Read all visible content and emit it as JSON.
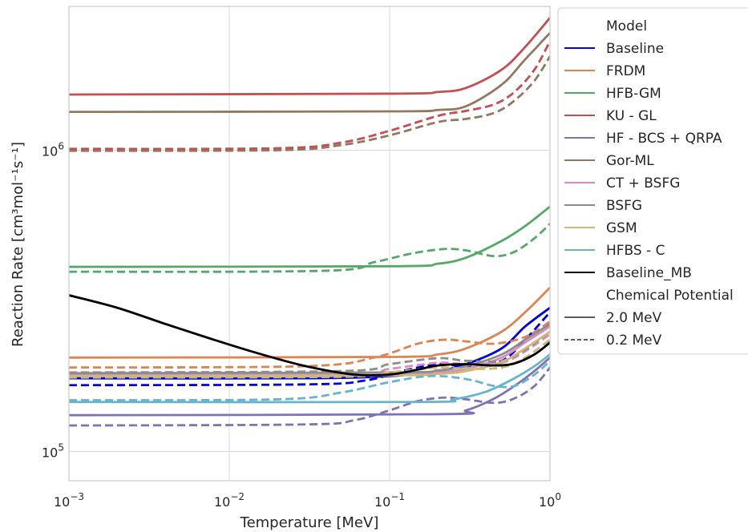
{
  "chart_data": {
    "type": "line",
    "xlabel": "Temperature [MeV]",
    "ylabel": "Reaction Rate [cm³mol⁻¹s⁻¹]",
    "xscale": "log",
    "yscale": "log",
    "xlim": [
      0.001,
      1.0
    ],
    "ylim": [
      80000,
      3000000
    ],
    "grid": true,
    "legend_position": "outside-right",
    "x_ticks": [
      {
        "value": 0.001,
        "mant": "10",
        "exp": "−3"
      },
      {
        "value": 0.01,
        "mant": "10",
        "exp": "−2"
      },
      {
        "value": 0.1,
        "mant": "10",
        "exp": "−1"
      },
      {
        "value": 1.0,
        "mant": "10",
        "exp": "0"
      }
    ],
    "y_ticks": [
      {
        "value": 100000,
        "mant": "10",
        "exp": "5"
      },
      {
        "value": 1000000,
        "mant": "10",
        "exp": "6"
      }
    ],
    "legend": {
      "model_header": "Model",
      "potential_header": "Chemical Potential",
      "potential_items": [
        {
          "label": "2.0 MeV",
          "dash": "solid"
        },
        {
          "label": "0.2 MeV",
          "dash": "dashed"
        }
      ]
    },
    "series": [
      {
        "name": "Baseline",
        "color": "#0000e0",
        "solid": [
          [
            0.001,
            175000
          ],
          [
            0.03,
            175000
          ],
          [
            0.1,
            178000
          ],
          [
            0.2,
            185000
          ],
          [
            0.3,
            195000
          ],
          [
            0.5,
            220000
          ],
          [
            0.7,
            260000
          ],
          [
            1.0,
            300000
          ]
        ],
        "dashed": [
          [
            0.001,
            166000
          ],
          [
            0.03,
            167000
          ],
          [
            0.07,
            172000
          ],
          [
            0.12,
            185000
          ],
          [
            0.2,
            195000
          ],
          [
            0.3,
            192000
          ],
          [
            0.5,
            200000
          ],
          [
            0.7,
            235000
          ],
          [
            1.0,
            290000
          ]
        ]
      },
      {
        "name": "FRDM",
        "color": "#dd8452",
        "solid": [
          [
            0.001,
            205000
          ],
          [
            0.1,
            206000
          ],
          [
            0.2,
            210000
          ],
          [
            0.3,
            220000
          ],
          [
            0.5,
            250000
          ],
          [
            0.7,
            290000
          ],
          [
            1.0,
            350000
          ]
        ],
        "dashed": [
          [
            0.001,
            190000
          ],
          [
            0.03,
            192000
          ],
          [
            0.08,
            205000
          ],
          [
            0.15,
            228000
          ],
          [
            0.22,
            235000
          ],
          [
            0.3,
            232000
          ],
          [
            0.45,
            228000
          ],
          [
            0.7,
            240000
          ],
          [
            1.0,
            270000
          ]
        ]
      },
      {
        "name": "HFB-GM",
        "color": "#55a868",
        "solid": [
          [
            0.001,
            410000
          ],
          [
            0.1,
            412000
          ],
          [
            0.2,
            420000
          ],
          [
            0.3,
            440000
          ],
          [
            0.5,
            500000
          ],
          [
            0.7,
            560000
          ],
          [
            1.0,
            650000
          ]
        ],
        "dashed": [
          [
            0.001,
            395000
          ],
          [
            0.04,
            398000
          ],
          [
            0.08,
            425000
          ],
          [
            0.14,
            455000
          ],
          [
            0.22,
            470000
          ],
          [
            0.3,
            465000
          ],
          [
            0.45,
            445000
          ],
          [
            0.6,
            460000
          ],
          [
            0.8,
            510000
          ],
          [
            1.0,
            570000
          ]
        ]
      },
      {
        "name": "KU - GL",
        "color": "#c44e52",
        "solid": [
          [
            0.001,
            1530000
          ],
          [
            0.1,
            1540000
          ],
          [
            0.2,
            1560000
          ],
          [
            0.3,
            1610000
          ],
          [
            0.5,
            1850000
          ],
          [
            0.7,
            2200000
          ],
          [
            1.0,
            2750000
          ]
        ],
        "dashed": [
          [
            0.001,
            1010000
          ],
          [
            0.02,
            1015000
          ],
          [
            0.05,
            1060000
          ],
          [
            0.1,
            1160000
          ],
          [
            0.2,
            1300000
          ],
          [
            0.3,
            1350000
          ],
          [
            0.45,
            1420000
          ],
          [
            0.6,
            1560000
          ],
          [
            0.8,
            1850000
          ],
          [
            1.0,
            2300000
          ]
        ]
      },
      {
        "name": "HF - BCS + QRPA",
        "color": "#8172b3",
        "solid": [
          [
            0.001,
            132000
          ],
          [
            0.2,
            133000
          ],
          [
            0.3,
            137000
          ],
          [
            0.45,
            150000
          ],
          [
            0.6,
            165000
          ],
          [
            0.8,
            185000
          ],
          [
            1.0,
            205000
          ]
        ],
        "dashed": [
          [
            0.001,
            122000
          ],
          [
            0.03,
            123000
          ],
          [
            0.06,
            127000
          ],
          [
            0.1,
            137000
          ],
          [
            0.15,
            147000
          ],
          [
            0.22,
            151000
          ],
          [
            0.3,
            149000
          ],
          [
            0.45,
            145000
          ],
          [
            0.6,
            150000
          ],
          [
            0.8,
            165000
          ],
          [
            1.0,
            190000
          ]
        ]
      },
      {
        "name": "Gor-ML",
        "color": "#937860",
        "solid": [
          [
            0.001,
            1340000
          ],
          [
            0.1,
            1345000
          ],
          [
            0.2,
            1360000
          ],
          [
            0.3,
            1400000
          ],
          [
            0.5,
            1650000
          ],
          [
            0.7,
            2000000
          ],
          [
            1.0,
            2450000
          ]
        ],
        "dashed": [
          [
            0.001,
            995000
          ],
          [
            0.02,
            1000000
          ],
          [
            0.05,
            1040000
          ],
          [
            0.1,
            1120000
          ],
          [
            0.2,
            1240000
          ],
          [
            0.3,
            1270000
          ],
          [
            0.45,
            1330000
          ],
          [
            0.6,
            1460000
          ],
          [
            0.8,
            1700000
          ],
          [
            1.0,
            2050000
          ]
        ]
      },
      {
        "name": "CT + BSFG",
        "color": "#da8bc3",
        "solid": [
          [
            0.001,
            180000
          ],
          [
            0.1,
            181000
          ],
          [
            0.2,
            183000
          ],
          [
            0.3,
            188000
          ],
          [
            0.5,
            205000
          ],
          [
            0.7,
            230000
          ],
          [
            1.0,
            260000
          ]
        ],
        "dashed": [
          [
            0.001,
            179000
          ],
          [
            0.05,
            180000
          ],
          [
            0.1,
            188000
          ],
          [
            0.2,
            197000
          ],
          [
            0.3,
            195000
          ],
          [
            0.5,
            197000
          ],
          [
            0.7,
            215000
          ],
          [
            1.0,
            245000
          ]
        ]
      },
      {
        "name": "BSFG",
        "color": "#8c8c8c",
        "solid": [
          [
            0.001,
            182000
          ],
          [
            0.1,
            183000
          ],
          [
            0.2,
            186000
          ],
          [
            0.3,
            192000
          ],
          [
            0.5,
            210000
          ],
          [
            0.7,
            235000
          ],
          [
            1.0,
            265000
          ]
        ],
        "dashed": [
          [
            0.001,
            183000
          ],
          [
            0.05,
            185000
          ],
          [
            0.1,
            195000
          ],
          [
            0.2,
            204000
          ],
          [
            0.3,
            200000
          ],
          [
            0.5,
            200000
          ],
          [
            0.7,
            218000
          ],
          [
            1.0,
            250000
          ]
        ]
      },
      {
        "name": "GSM",
        "color": "#ccb974",
        "solid": [
          [
            0.001,
            178000
          ],
          [
            0.1,
            179000
          ],
          [
            0.2,
            181000
          ],
          [
            0.3,
            185000
          ],
          [
            0.5,
            198000
          ],
          [
            0.7,
            220000
          ],
          [
            1.0,
            250000
          ]
        ],
        "dashed": [
          [
            0.001,
            176000
          ],
          [
            0.05,
            177000
          ],
          [
            0.1,
            183000
          ],
          [
            0.2,
            190000
          ],
          [
            0.3,
            188000
          ],
          [
            0.5,
            190000
          ],
          [
            0.7,
            205000
          ],
          [
            1.0,
            235000
          ]
        ]
      },
      {
        "name": "HFBS - C",
        "color": "#64b5cd",
        "solid": [
          [
            0.001,
            146000
          ],
          [
            0.15,
            146000
          ],
          [
            0.25,
            149000
          ],
          [
            0.4,
            158000
          ],
          [
            0.6,
            175000
          ],
          [
            0.8,
            192000
          ],
          [
            1.0,
            210000
          ]
        ],
        "dashed": [
          [
            0.001,
            148000
          ],
          [
            0.02,
            149000
          ],
          [
            0.05,
            157000
          ],
          [
            0.1,
            170000
          ],
          [
            0.18,
            178000
          ],
          [
            0.3,
            174000
          ],
          [
            0.45,
            165000
          ],
          [
            0.6,
            165000
          ],
          [
            0.8,
            180000
          ],
          [
            1.0,
            200000
          ]
        ]
      },
      {
        "name": "Baseline_MB",
        "color": "#000000",
        "solid": [
          [
            0.001,
            330000
          ],
          [
            0.002,
            300000
          ],
          [
            0.004,
            265000
          ],
          [
            0.008,
            235000
          ],
          [
            0.015,
            212000
          ],
          [
            0.03,
            192000
          ],
          [
            0.06,
            180000
          ],
          [
            0.1,
            180000
          ],
          [
            0.15,
            187000
          ],
          [
            0.2,
            193000
          ],
          [
            0.3,
            195000
          ],
          [
            0.45,
            193000
          ],
          [
            0.6,
            196000
          ],
          [
            0.8,
            210000
          ],
          [
            1.0,
            230000
          ]
        ]
      }
    ]
  }
}
